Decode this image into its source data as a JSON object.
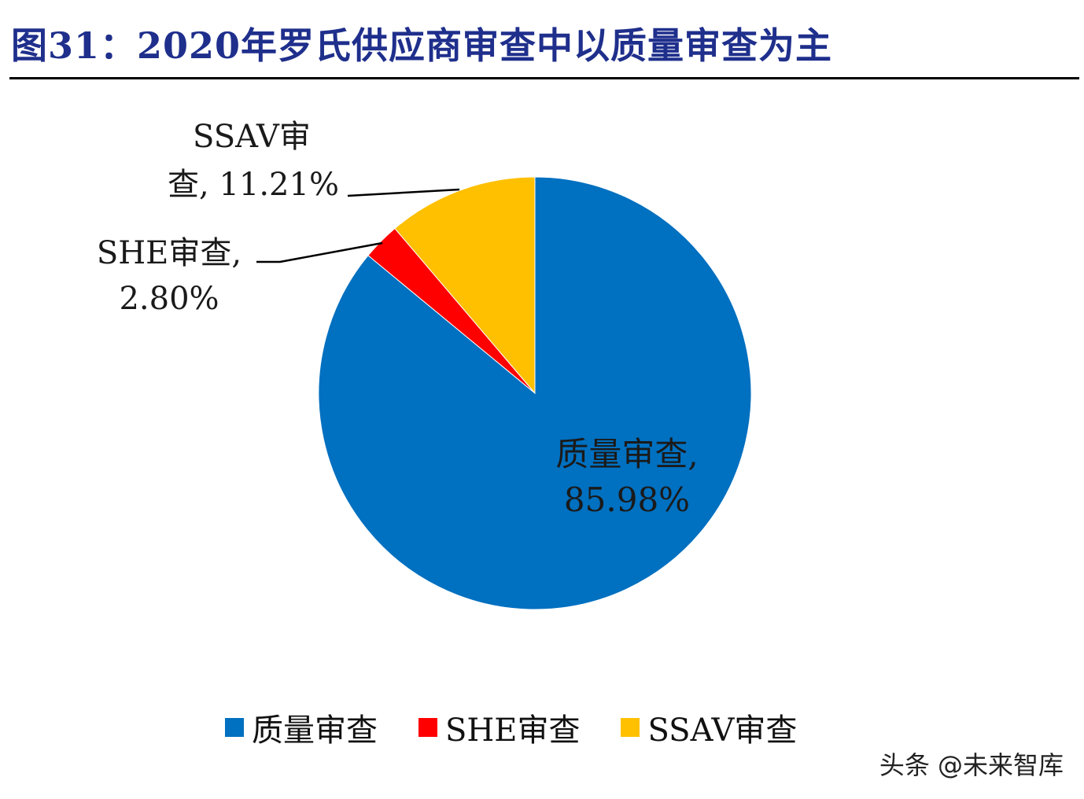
{
  "title": "图31：2020年罗氏供应商审查中以质量审查为主",
  "chart_data": {
    "type": "pie",
    "slices": [
      {
        "name": "质量审查",
        "value": 85.98,
        "label": "质量审查,",
        "value_label": "85.98%",
        "color": "#0070c0"
      },
      {
        "name": "SHE审查",
        "value": 2.8,
        "label": "SHE审查,",
        "value_label": "2.80%",
        "color": "#ff0000"
      },
      {
        "name": "SSAV审查",
        "value": 11.21,
        "label": "SSAV审",
        "value_label": "查, 11.21%",
        "color": "#ffc000"
      }
    ],
    "legend_position": "bottom",
    "legend": [
      "质量审查",
      "SHE审查",
      "SSAV审查"
    ]
  },
  "watermark": "头条 @未来智库"
}
